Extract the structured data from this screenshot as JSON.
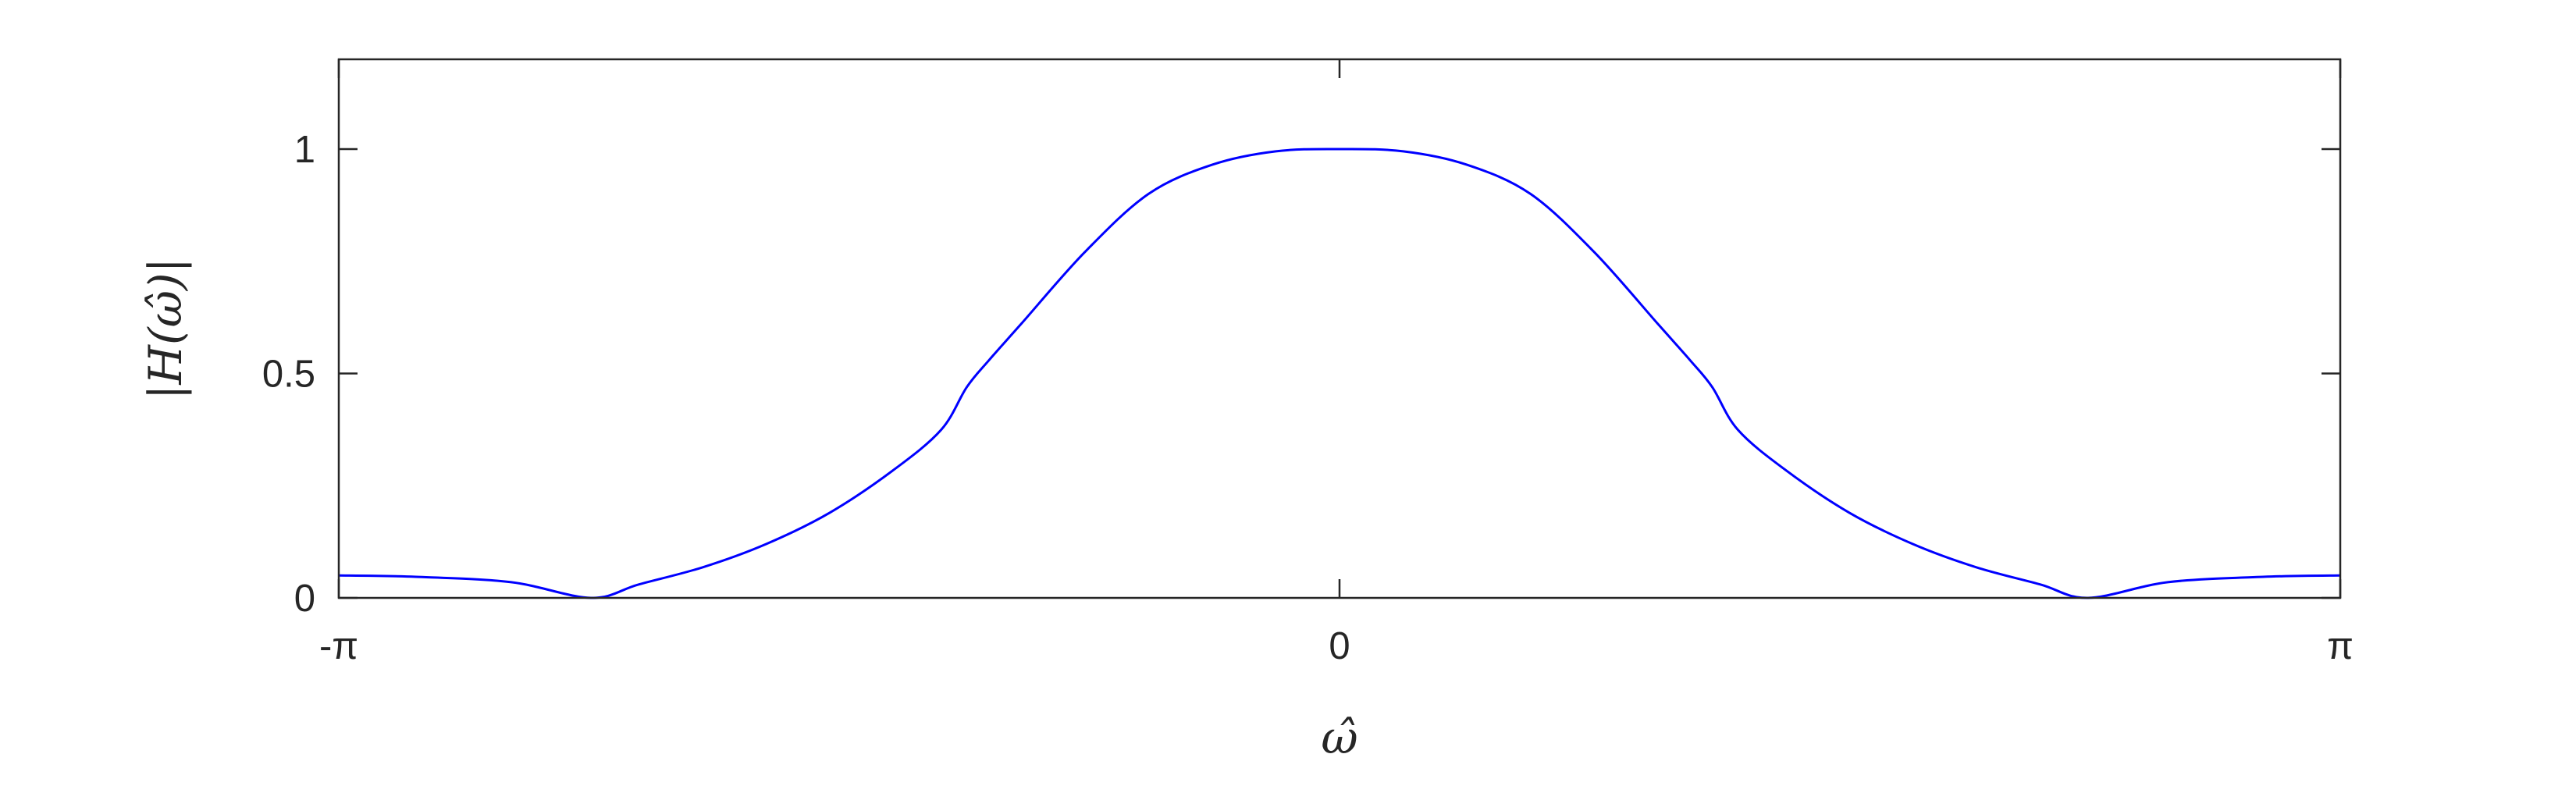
{
  "chart_data": {
    "type": "line",
    "title": "",
    "xlabel": "ω̂",
    "ylabel": "|H(ω̂)|",
    "xlim": [
      -3.14159,
      3.14159
    ],
    "ylim": [
      0,
      1.2
    ],
    "x_ticks": [
      {
        "value": -3.14159,
        "label": "-π"
      },
      {
        "value": 0,
        "label": "0"
      },
      {
        "value": 3.14159,
        "label": "π"
      }
    ],
    "y_ticks": [
      {
        "value": 0,
        "label": "0"
      },
      {
        "value": 0.5,
        "label": "0.5"
      },
      {
        "value": 1,
        "label": "1"
      }
    ],
    "grid": false,
    "series": [
      {
        "color": "#0000ff",
        "x": [
          -3.1416,
          -2.9,
          -2.6,
          -2.35,
          -2.2,
          -2.0,
          -1.8,
          -1.6,
          -1.4,
          -1.25,
          -1.17,
          -1.1,
          -1.0,
          -0.8,
          -0.6,
          -0.4,
          -0.2,
          0,
          0.2,
          0.4,
          0.6,
          0.8,
          1.0,
          1.1,
          1.17,
          1.25,
          1.4,
          1.6,
          1.8,
          2.0,
          2.2,
          2.35,
          2.6,
          2.9,
          3.1416
        ],
        "y": [
          0.05,
          0.047,
          0.035,
          0.0,
          0.03,
          0.068,
          0.12,
          0.19,
          0.285,
          0.375,
          0.47,
          0.53,
          0.61,
          0.77,
          0.9,
          0.965,
          0.995,
          1.0,
          0.995,
          0.965,
          0.9,
          0.77,
          0.61,
          0.53,
          0.47,
          0.375,
          0.285,
          0.19,
          0.12,
          0.068,
          0.03,
          0.0,
          0.035,
          0.047,
          0.05
        ]
      }
    ]
  }
}
